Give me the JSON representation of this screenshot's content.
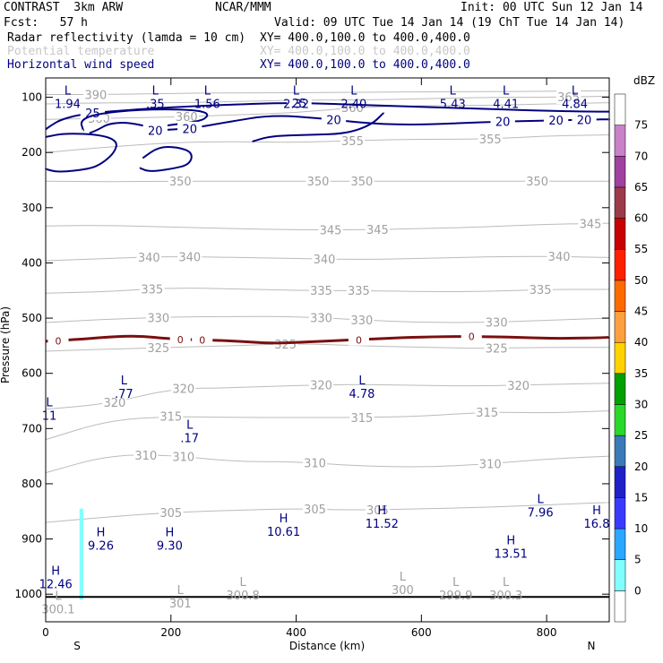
{
  "header": {
    "model": "CONTRAST  3km ARW",
    "center": "NCAR/MMM",
    "init": "Init: 00 UTC Sun 12 Jan 14",
    "fcst": "Fcst:   57 h",
    "valid": "Valid: 09 UTC Tue 14 Jan 14 (19 ChT Tue 14 Jan 14)",
    "fields": [
      {
        "name": "Radar reflectivity (lamda = 10 cm)",
        "xy": "XY= 400.0,100.0 to 400.0,400.0"
      },
      {
        "name": "Potential temperature",
        "xy": "XY= 400.0,100.0 to 400.0,400.0"
      },
      {
        "name": "Horizontal wind speed",
        "xy": "XY= 400.0,100.0 to 400.0,400.0"
      }
    ]
  },
  "colors": {
    "theta": "#bbbbbb",
    "wind": "#000080",
    "freezing": "#7a1010",
    "radar_echo": "#80ffff",
    "hl_label": "#000080",
    "theta_label": "#a0a0a0"
  },
  "chart_data": {
    "type": "contour",
    "xlabel": "Distance (km)",
    "ylabel": "Pressure (hPa)",
    "xlim": [
      0,
      900
    ],
    "ylim": [
      1050,
      65
    ],
    "x_ticks": [
      0,
      200,
      400,
      600,
      800
    ],
    "y_ticks": [
      100,
      200,
      300,
      400,
      500,
      600,
      700,
      800,
      900,
      1000
    ],
    "x_end_labels": {
      "left": "S",
      "right": "N"
    },
    "colorbar": {
      "unit": "dBZ",
      "levels": [
        0,
        5,
        10,
        15,
        20,
        25,
        30,
        35,
        40,
        45,
        50,
        55,
        60,
        65,
        70,
        75
      ],
      "colors": [
        "#ffffff",
        "#80ffff",
        "#2aa8ff",
        "#3a3aff",
        "#2020c8",
        "#3a7ab8",
        "#2ad82a",
        "#00a000",
        "#ffd200",
        "#ffa040",
        "#ff6a00",
        "#ff2000",
        "#c80000",
        "#9c3a4a",
        "#a040a0",
        "#c882c8",
        "#ffffff"
      ]
    },
    "theta_lines": [
      {
        "label": "305",
        "label_x": [
          200,
          430,
          530
        ],
        "p": [
          [
            0,
            870
          ],
          [
            100,
            860
          ],
          [
            200,
            852
          ],
          [
            300,
            848
          ],
          [
            400,
            845
          ],
          [
            500,
            848
          ],
          [
            600,
            845
          ],
          [
            700,
            843
          ],
          [
            800,
            838
          ],
          [
            900,
            834
          ]
        ]
      },
      {
        "label": "310",
        "label_x": [
          160,
          220,
          430,
          710
        ],
        "p": [
          [
            0,
            780
          ],
          [
            100,
            748
          ],
          [
            200,
            748
          ],
          [
            300,
            760
          ],
          [
            400,
            760
          ],
          [
            500,
            768
          ],
          [
            600,
            770
          ],
          [
            700,
            765
          ],
          [
            800,
            755
          ],
          [
            900,
            750
          ]
        ]
      },
      {
        "label": "315",
        "label_x": [
          200,
          505,
          705
        ],
        "p": [
          [
            0,
            720
          ],
          [
            100,
            685
          ],
          [
            200,
            678
          ],
          [
            300,
            680
          ],
          [
            400,
            680
          ],
          [
            500,
            680
          ],
          [
            600,
            678
          ],
          [
            700,
            670
          ],
          [
            800,
            672
          ],
          [
            900,
            668
          ]
        ]
      },
      {
        "label": "320",
        "label_x": [
          110,
          220,
          440,
          755
        ],
        "p": [
          [
            0,
            665
          ],
          [
            100,
            655
          ],
          [
            200,
            628
          ],
          [
            300,
            626
          ],
          [
            400,
            622
          ],
          [
            500,
            620
          ],
          [
            600,
            622
          ],
          [
            700,
            623
          ],
          [
            800,
            620
          ],
          [
            900,
            618
          ]
        ]
      },
      {
        "label": "325",
        "label_x": [
          180,
          383,
          720
        ],
        "p": [
          [
            0,
            560
          ],
          [
            100,
            556
          ],
          [
            200,
            553
          ],
          [
            300,
            550
          ],
          [
            400,
            546
          ],
          [
            500,
            550
          ],
          [
            600,
            553
          ],
          [
            700,
            555
          ],
          [
            800,
            553
          ],
          [
            900,
            553
          ]
        ]
      },
      {
        "label": "330",
        "label_x": [
          180,
          440,
          505,
          720
        ],
        "p": [
          [
            0,
            508
          ],
          [
            100,
            502
          ],
          [
            200,
            498
          ],
          [
            300,
            497
          ],
          [
            400,
            497
          ],
          [
            500,
            503
          ],
          [
            600,
            508
          ],
          [
            700,
            508
          ],
          [
            800,
            504
          ],
          [
            900,
            500
          ]
        ]
      },
      {
        "label": "335",
        "label_x": [
          170,
          440,
          500,
          790
        ],
        "p": [
          [
            0,
            455
          ],
          [
            100,
            452
          ],
          [
            200,
            445
          ],
          [
            300,
            447
          ],
          [
            400,
            450
          ],
          [
            500,
            450
          ],
          [
            600,
            452
          ],
          [
            700,
            452
          ],
          [
            800,
            448
          ],
          [
            900,
            448
          ]
        ]
      },
      {
        "label": "340",
        "label_x": [
          165,
          230,
          445,
          820
        ],
        "p": [
          [
            0,
            396
          ],
          [
            100,
            392
          ],
          [
            200,
            388
          ],
          [
            300,
            390
          ],
          [
            400,
            392
          ],
          [
            500,
            394
          ],
          [
            600,
            392
          ],
          [
            700,
            389
          ],
          [
            800,
            388
          ],
          [
            900,
            390
          ]
        ]
      },
      {
        "label": "345",
        "label_x": [
          455,
          530,
          870
        ],
        "p": [
          [
            0,
            333
          ],
          [
            100,
            332
          ],
          [
            200,
            335
          ],
          [
            300,
            338
          ],
          [
            400,
            340
          ],
          [
            500,
            340
          ],
          [
            600,
            338
          ],
          [
            700,
            335
          ],
          [
            800,
            330
          ],
          [
            900,
            328
          ]
        ]
      },
      {
        "label": "350",
        "label_x": [
          215,
          435,
          505,
          785
        ],
        "p": [
          [
            0,
            252
          ],
          [
            100,
            253
          ],
          [
            200,
            252
          ],
          [
            300,
            252
          ],
          [
            400,
            252
          ],
          [
            500,
            252
          ],
          [
            600,
            252
          ],
          [
            700,
            252
          ],
          [
            800,
            252
          ],
          [
            900,
            252
          ]
        ]
      },
      {
        "label": "355",
        "label_x": [
          490,
          710
        ],
        "p": [
          [
            0,
            200
          ],
          [
            100,
            190
          ],
          [
            200,
            182
          ],
          [
            300,
            180
          ],
          [
            400,
            182
          ],
          [
            500,
            178
          ],
          [
            600,
            176
          ],
          [
            700,
            176
          ],
          [
            800,
            170
          ],
          [
            900,
            168
          ]
        ]
      },
      {
        "label": "360",
        "label_x": [
          85,
          225,
          490
        ],
        "p": [
          [
            0,
            140
          ],
          [
            100,
            138
          ],
          [
            200,
            136
          ],
          [
            300,
            132
          ],
          [
            400,
            128
          ],
          [
            500,
            118
          ],
          [
            600,
            115
          ],
          [
            700,
            115
          ],
          [
            800,
            112
          ],
          [
            900,
            110
          ]
        ]
      },
      {
        "label": "365",
        "label_x": [
          835
        ],
        "p": [
          [
            0,
            112
          ],
          [
            100,
            110
          ],
          [
            200,
            110
          ],
          [
            300,
            108
          ],
          [
            400,
            105
          ],
          [
            500,
            105
          ],
          [
            600,
            103
          ],
          [
            700,
            100
          ],
          [
            800,
            100
          ],
          [
            900,
            98
          ]
        ]
      },
      {
        "label": "390",
        "label_x": [
          80
        ],
        "p": [
          [
            0,
            95
          ],
          [
            100,
            95
          ],
          [
            200,
            93
          ],
          [
            300,
            92
          ],
          [
            400,
            92
          ],
          [
            500,
            91
          ],
          [
            600,
            90
          ],
          [
            700,
            90
          ],
          [
            800,
            89
          ],
          [
            900,
            88
          ]
        ]
      }
    ],
    "freezing_level": {
      "label": "0",
      "label_x": [
        20,
        215,
        250,
        500,
        680
      ],
      "p": [
        [
          0,
          542
        ],
        [
          60,
          538
        ],
        [
          100,
          534
        ],
        [
          150,
          532
        ],
        [
          200,
          538
        ],
        [
          300,
          541
        ],
        [
          360,
          546
        ],
        [
          420,
          543
        ],
        [
          480,
          540
        ],
        [
          540,
          537
        ],
        [
          600,
          534
        ],
        [
          680,
          533
        ],
        [
          760,
          535
        ],
        [
          820,
          537
        ],
        [
          900,
          535
        ]
      ]
    },
    "wind_contours": [
      {
        "label": "25",
        "label_x": [
          75,
          405
        ],
        "p": [
          [
            0,
            158
          ],
          [
            10,
            150
          ],
          [
            25,
            140
          ],
          [
            60,
            130
          ],
          [
            120,
            124
          ],
          [
            200,
            118
          ],
          [
            300,
            113
          ],
          [
            380,
            110
          ],
          [
            460,
            112
          ],
          [
            560,
            116
          ],
          [
            680,
            120
          ],
          [
            780,
            124
          ],
          [
            870,
            126
          ],
          [
            900,
            126
          ]
        ]
      },
      {
        "label": "25",
        "label_x": [],
        "p": [
          [
            70,
            165
          ],
          [
            85,
            158
          ],
          [
            100,
            148
          ],
          [
            130,
            145
          ],
          [
            170,
            155
          ],
          [
            200,
            150
          ],
          [
            230,
            146
          ],
          [
            255,
            140
          ],
          [
            260,
            128
          ],
          [
            230,
            122
          ],
          [
            150,
            122
          ],
          [
            80,
            130
          ],
          [
            55,
            142
          ],
          [
            60,
            160
          ]
        ]
      },
      {
        "label": "20",
        "label_x": [
          175,
          230,
          460,
          730,
          815,
          860
        ],
        "p": [
          [
            160,
            170
          ],
          [
            170,
            160
          ],
          [
            230,
            157
          ],
          [
            290,
            145
          ],
          [
            360,
            132
          ],
          [
            440,
            138
          ],
          [
            520,
            148
          ],
          [
            600,
            150
          ],
          [
            700,
            145
          ],
          [
            800,
            142
          ],
          [
            900,
            140
          ]
        ]
      },
      {
        "label": "20",
        "label_x": [],
        "p": [
          [
            330,
            180
          ],
          [
            360,
            170
          ],
          [
            420,
            168
          ],
          [
            480,
            166
          ],
          [
            520,
            150
          ],
          [
            540,
            128
          ]
        ]
      },
      {
        "label": "",
        "label_x": [],
        "p": [
          [
            155,
            210
          ],
          [
            180,
            190
          ],
          [
            210,
            190
          ],
          [
            235,
            200
          ],
          [
            230,
            222
          ],
          [
            200,
            230
          ],
          [
            165,
            235
          ],
          [
            150,
            228
          ]
        ]
      },
      {
        "label": "",
        "label_x": [],
        "p": [
          [
            0,
            172
          ],
          [
            30,
            165
          ],
          [
            90,
            168
          ],
          [
            115,
            180
          ],
          [
            110,
            200
          ],
          [
            90,
            220
          ],
          [
            70,
            230
          ],
          [
            20,
            236
          ],
          [
            0,
            230
          ]
        ]
      }
    ],
    "radar_echo": {
      "x": [
        54,
        60
      ],
      "p": [
        845,
        1010
      ]
    },
    "hl_labels": [
      {
        "type": "L",
        "value": "1.94",
        "x": 35,
        "p": 95
      },
      {
        "type": "L",
        "value": ".35",
        "x": 175,
        "p": 95
      },
      {
        "type": "L",
        "value": "1.56",
        "x": 258,
        "p": 95
      },
      {
        "type": "L",
        "value": "2.32",
        "x": 400,
        "p": 95
      },
      {
        "type": "L",
        "value": "2.40",
        "x": 492,
        "p": 95
      },
      {
        "type": "L",
        "value": "5.43",
        "x": 650,
        "p": 95
      },
      {
        "type": "L",
        "value": "4.41",
        "x": 735,
        "p": 95
      },
      {
        "type": "L",
        "value": "4.84",
        "x": 845,
        "p": 95
      },
      {
        "type": "L",
        "value": ".77",
        "x": 125,
        "p": 620
      },
      {
        "type": "L",
        "value": "4.78",
        "x": 505,
        "p": 620
      },
      {
        "type": "L",
        "value": "11",
        "x": 5,
        "p": 660
      },
      {
        "type": "L",
        "value": ".17",
        "x": 230,
        "p": 700
      },
      {
        "type": "L",
        "value": "7.96",
        "x": 790,
        "p": 835
      },
      {
        "type": "H",
        "value": "16.8",
        "x": 880,
        "p": 855
      },
      {
        "type": "H",
        "value": "11.52",
        "x": 537,
        "p": 855
      },
      {
        "type": "H",
        "value": "10.61",
        "x": 380,
        "p": 870
      },
      {
        "type": "H",
        "value": "9.26",
        "x": 88,
        "p": 895
      },
      {
        "type": "H",
        "value": "9.30",
        "x": 198,
        "p": 895
      },
      {
        "type": "H",
        "value": "13.51",
        "x": 743,
        "p": 910
      },
      {
        "type": "H",
        "value": "12.46",
        "x": 16,
        "p": 965
      }
    ],
    "surface_theta_labels": [
      {
        "type": "L",
        "value": "300.1",
        "x": 20,
        "p": 1010
      },
      {
        "type": "L",
        "value": "301",
        "x": 215,
        "p": 1000
      },
      {
        "type": "L",
        "value": "300.8",
        "x": 315,
        "p": 985
      },
      {
        "type": "L",
        "value": "300",
        "x": 570,
        "p": 975
      },
      {
        "type": "L",
        "value": "299.9",
        "x": 655,
        "p": 985
      },
      {
        "type": "L",
        "value": "300.3",
        "x": 735,
        "p": 985
      }
    ],
    "ground_p": 1005
  }
}
